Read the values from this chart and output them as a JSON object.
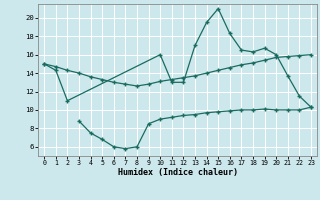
{
  "xlabel": "Humidex (Indice chaleur)",
  "bg_color": "#cce8ec",
  "grid_color": "#ffffff",
  "line_color": "#1a6b60",
  "xlim": [
    -0.5,
    23.5
  ],
  "ylim": [
    5.0,
    21.5
  ],
  "yticks": [
    6,
    8,
    10,
    12,
    14,
    16,
    18,
    20
  ],
  "xticks": [
    0,
    1,
    2,
    3,
    4,
    5,
    6,
    7,
    8,
    9,
    10,
    11,
    12,
    13,
    14,
    15,
    16,
    17,
    18,
    19,
    20,
    21,
    22,
    23
  ],
  "line1_x": [
    0,
    1,
    2,
    10,
    11,
    12,
    13,
    14,
    15,
    16,
    17,
    18,
    19,
    20,
    21,
    22,
    23
  ],
  "line1_y": [
    15.0,
    14.3,
    11.0,
    16.0,
    13.0,
    13.0,
    17.0,
    19.5,
    21.0,
    18.3,
    16.5,
    16.3,
    16.7,
    16.0,
    13.7,
    11.5,
    10.3
  ],
  "line2_x": [
    0,
    1,
    2,
    3,
    4,
    5,
    6,
    7,
    8,
    9,
    10,
    11,
    12,
    13,
    14,
    15,
    16,
    17,
    18,
    19,
    20,
    21,
    22,
    23
  ],
  "line2_y": [
    15.0,
    14.7,
    14.3,
    14.0,
    13.6,
    13.3,
    13.0,
    12.8,
    12.6,
    12.8,
    13.1,
    13.3,
    13.5,
    13.7,
    14.0,
    14.3,
    14.6,
    14.9,
    15.1,
    15.4,
    15.7,
    15.8,
    15.9,
    16.0
  ],
  "line3_x": [
    3,
    4,
    5,
    6,
    7,
    8,
    9,
    10,
    11,
    12,
    13,
    14,
    15,
    16,
    17,
    18,
    19,
    20,
    21,
    22,
    23
  ],
  "line3_y": [
    8.8,
    7.5,
    6.8,
    6.0,
    5.8,
    6.0,
    8.5,
    9.0,
    9.2,
    9.4,
    9.5,
    9.7,
    9.8,
    9.9,
    10.0,
    10.0,
    10.1,
    10.0,
    10.0,
    10.0,
    10.3
  ]
}
